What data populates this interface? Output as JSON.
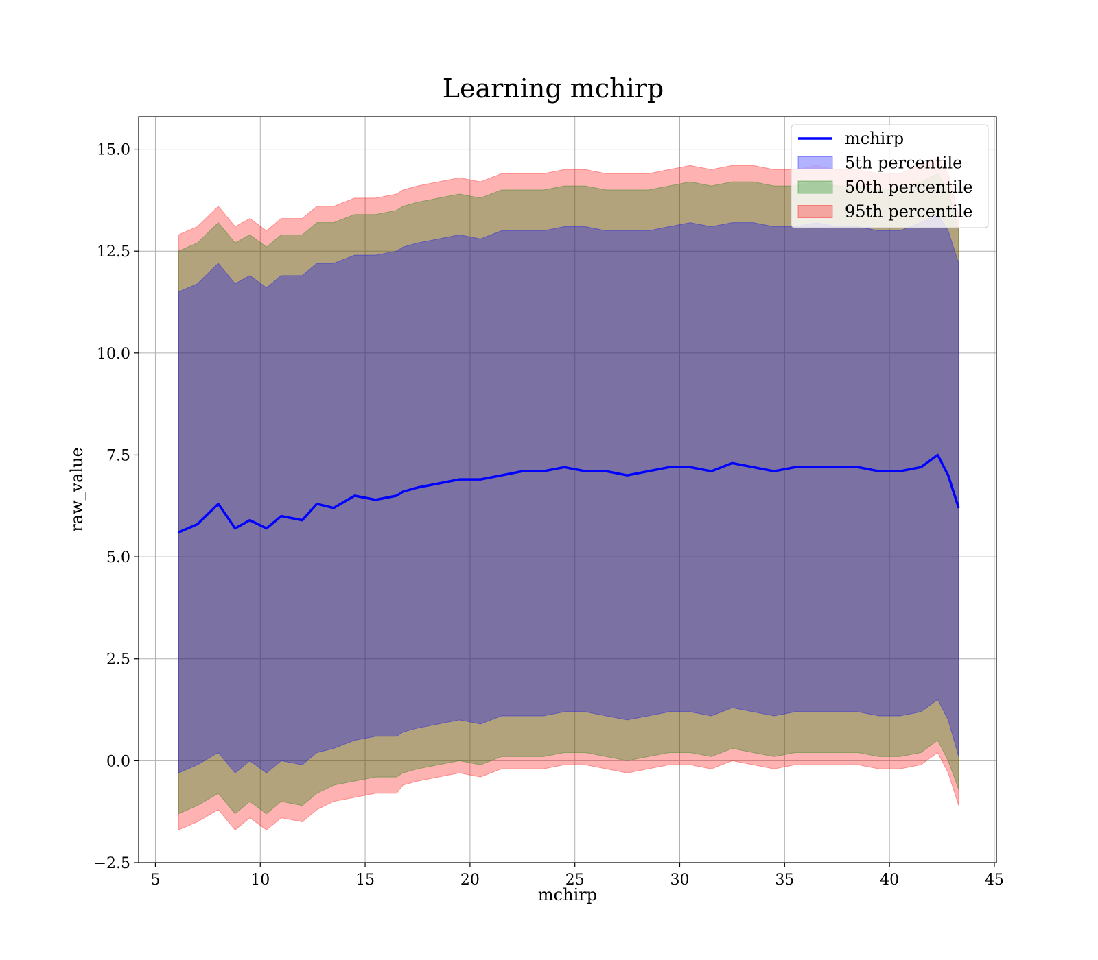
{
  "chart_data": {
    "type": "line",
    "title": "Learning mchirp",
    "xlabel": "mchirp",
    "ylabel": "raw_value",
    "xlim": [
      4.2,
      45.1
    ],
    "ylim": [
      -2.5,
      15.8
    ],
    "xticks": [
      5,
      10,
      15,
      20,
      25,
      30,
      35,
      40,
      45
    ],
    "xtick_labels": [
      "5",
      "10",
      "15",
      "20",
      "25",
      "30",
      "35",
      "40",
      "45"
    ],
    "yticks": [
      -2.5,
      0.0,
      2.5,
      5.0,
      7.5,
      10.0,
      12.5,
      15.0
    ],
    "ytick_labels": [
      "−2.5",
      "0.0",
      "2.5",
      "5.0",
      "7.5",
      "10.0",
      "12.5",
      "15.0"
    ],
    "grid": true,
    "legend_position": "top-right",
    "legend": [
      {
        "label": "mchirp",
        "kind": "line",
        "color": "#0000ff"
      },
      {
        "label": "5th percentile",
        "kind": "patch",
        "color": "#0000ff"
      },
      {
        "label": "50th percentile",
        "kind": "patch",
        "color": "#008000"
      },
      {
        "label": "95th percentile",
        "kind": "patch",
        "color": "#ff0000"
      }
    ],
    "x": [
      6.1,
      7.0,
      8.0,
      8.8,
      9.5,
      10.3,
      11.0,
      12.0,
      12.7,
      13.5,
      14.5,
      15.5,
      16.5,
      16.8,
      17.5,
      18.5,
      19.5,
      20.5,
      21.5,
      22.5,
      23.5,
      24.5,
      25.5,
      26.5,
      27.5,
      28.5,
      29.5,
      30.5,
      31.5,
      32.5,
      33.5,
      34.5,
      35.5,
      36.5,
      37.5,
      38.5,
      39.5,
      40.5,
      41.5,
      42.3,
      42.8,
      43.3
    ],
    "series": [
      {
        "name": "mchirp",
        "color": "#0000ff",
        "values": [
          5.6,
          5.8,
          6.3,
          5.7,
          5.9,
          5.7,
          6.0,
          5.9,
          6.3,
          6.2,
          6.5,
          6.4,
          6.5,
          6.6,
          6.7,
          6.8,
          6.9,
          6.9,
          7.0,
          7.1,
          7.1,
          7.2,
          7.1,
          7.1,
          7.0,
          7.1,
          7.2,
          7.2,
          7.1,
          7.3,
          7.2,
          7.1,
          7.2,
          7.2,
          7.2,
          7.2,
          7.1,
          7.1,
          7.2,
          7.5,
          7.0,
          6.2
        ]
      },
      {
        "name": "5th percentile",
        "color": "#0000ff",
        "lower": [
          -0.3,
          -0.1,
          0.2,
          -0.3,
          0.0,
          -0.3,
          0.0,
          -0.1,
          0.2,
          0.3,
          0.5,
          0.6,
          0.6,
          0.7,
          0.8,
          0.9,
          1.0,
          0.9,
          1.1,
          1.1,
          1.1,
          1.2,
          1.2,
          1.1,
          1.0,
          1.1,
          1.2,
          1.2,
          1.1,
          1.3,
          1.2,
          1.1,
          1.2,
          1.2,
          1.2,
          1.2,
          1.1,
          1.1,
          1.2,
          1.5,
          1.0,
          0.1
        ],
        "upper": [
          11.5,
          11.7,
          12.2,
          11.7,
          11.9,
          11.6,
          11.9,
          11.9,
          12.2,
          12.2,
          12.4,
          12.4,
          12.5,
          12.6,
          12.7,
          12.8,
          12.9,
          12.8,
          13.0,
          13.0,
          13.0,
          13.1,
          13.1,
          13.0,
          13.0,
          13.0,
          13.1,
          13.2,
          13.1,
          13.2,
          13.2,
          13.1,
          13.1,
          13.2,
          13.1,
          13.1,
          13.0,
          13.0,
          13.2,
          13.4,
          13.0,
          12.2
        ]
      },
      {
        "name": "50th percentile",
        "color": "#008000",
        "lower": [
          -1.3,
          -1.1,
          -0.8,
          -1.3,
          -1.0,
          -1.3,
          -1.0,
          -1.1,
          -0.8,
          -0.6,
          -0.5,
          -0.4,
          -0.4,
          -0.3,
          -0.2,
          -0.1,
          0.0,
          -0.1,
          0.1,
          0.1,
          0.1,
          0.2,
          0.2,
          0.1,
          0.0,
          0.1,
          0.2,
          0.2,
          0.1,
          0.3,
          0.2,
          0.1,
          0.2,
          0.2,
          0.2,
          0.2,
          0.1,
          0.1,
          0.2,
          0.5,
          0.0,
          -0.7
        ],
        "upper": [
          12.5,
          12.7,
          13.2,
          12.7,
          12.9,
          12.6,
          12.9,
          12.9,
          13.2,
          13.2,
          13.4,
          13.4,
          13.5,
          13.6,
          13.7,
          13.8,
          13.9,
          13.8,
          14.0,
          14.0,
          14.0,
          14.1,
          14.1,
          14.0,
          14.0,
          14.0,
          14.1,
          14.2,
          14.1,
          14.2,
          14.2,
          14.1,
          14.1,
          14.2,
          14.1,
          14.1,
          14.0,
          14.0,
          14.2,
          14.4,
          14.0,
          13.0
        ]
      },
      {
        "name": "95th percentile",
        "color": "#ff0000",
        "lower": [
          -1.7,
          -1.5,
          -1.2,
          -1.7,
          -1.4,
          -1.7,
          -1.4,
          -1.5,
          -1.2,
          -1.0,
          -0.9,
          -0.8,
          -0.8,
          -0.6,
          -0.5,
          -0.4,
          -0.3,
          -0.4,
          -0.2,
          -0.2,
          -0.2,
          -0.1,
          -0.1,
          -0.2,
          -0.3,
          -0.2,
          -0.1,
          -0.1,
          -0.2,
          0.0,
          -0.1,
          -0.2,
          -0.1,
          -0.1,
          -0.1,
          -0.1,
          -0.2,
          -0.2,
          -0.1,
          0.2,
          -0.3,
          -1.1
        ],
        "upper": [
          12.9,
          13.1,
          13.6,
          13.1,
          13.3,
          13.0,
          13.3,
          13.3,
          13.6,
          13.6,
          13.8,
          13.8,
          13.9,
          14.0,
          14.1,
          14.2,
          14.3,
          14.2,
          14.4,
          14.4,
          14.4,
          14.5,
          14.5,
          14.4,
          14.4,
          14.4,
          14.5,
          14.6,
          14.5,
          14.6,
          14.6,
          14.5,
          14.5,
          14.6,
          14.5,
          14.5,
          14.4,
          14.4,
          14.6,
          14.8,
          14.4,
          13.4
        ]
      }
    ]
  }
}
